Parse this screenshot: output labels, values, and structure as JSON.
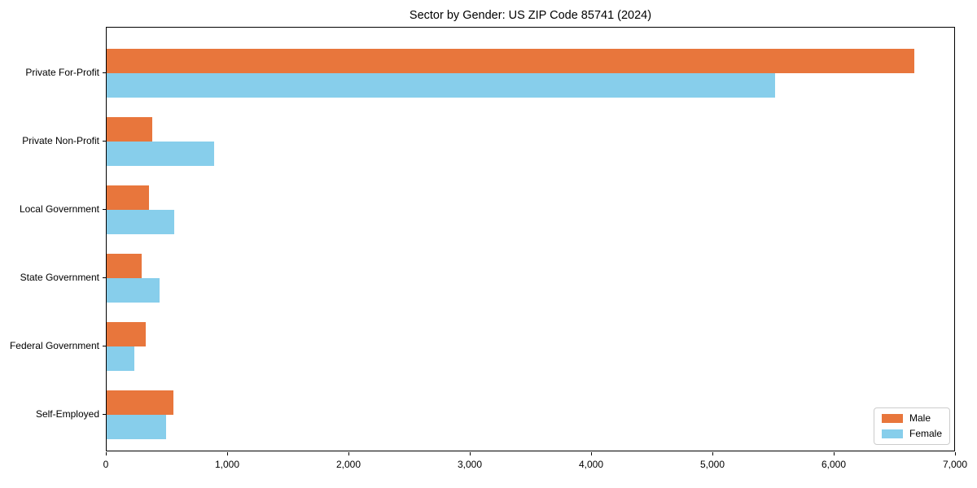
{
  "colors": {
    "male": "#e8763c",
    "female": "#87ceeb",
    "axis": "#000000",
    "background": "#ffffff",
    "legend_border": "#cccccc"
  },
  "chart_data": {
    "type": "bar",
    "orientation": "horizontal",
    "title": "Sector by Gender: US ZIP Code 85741 (2024)",
    "xlabel": "",
    "ylabel": "",
    "categories": [
      "Private For-Profit",
      "Private Non-Profit",
      "Local Government",
      "State Government",
      "Federal Government",
      "Self-Employed"
    ],
    "series": [
      {
        "name": "Male",
        "color": "#e8763c",
        "values": [
          6670,
          375,
          350,
          290,
          320,
          550
        ]
      },
      {
        "name": "Female",
        "color": "#87ceeb",
        "values": [
          5520,
          890,
          555,
          435,
          230,
          490
        ]
      }
    ],
    "xlim": [
      0,
      7000
    ],
    "xticks": [
      0,
      1000,
      2000,
      3000,
      4000,
      5000,
      6000,
      7000
    ],
    "xtick_labels": [
      "0",
      "1,000",
      "2,000",
      "3,000",
      "4,000",
      "5,000",
      "6,000",
      "7,000"
    ],
    "grid": false,
    "legend": {
      "position": "lower right",
      "entries": [
        "Male",
        "Female"
      ]
    }
  }
}
